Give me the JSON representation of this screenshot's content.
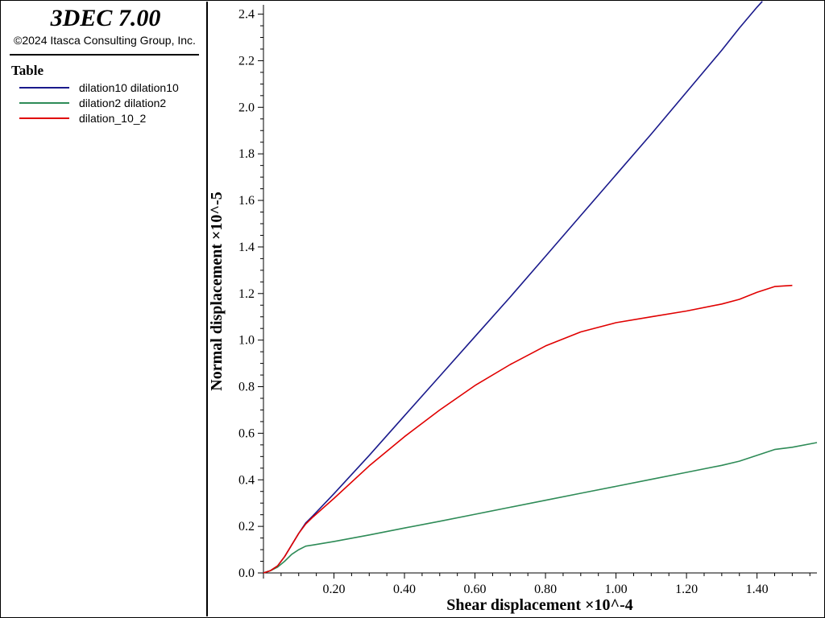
{
  "app": {
    "title": "3DEC 7.00",
    "copyright": "©2024 Itasca Consulting Group, Inc."
  },
  "legend": {
    "heading": "Table",
    "items": [
      {
        "label": "dilation10 dilation10",
        "color": "#1a1a8c"
      },
      {
        "label": "dilation2 dilation2",
        "color": "#2e8b57"
      },
      {
        "label": "dilation_10_2",
        "color": "#e00000"
      }
    ]
  },
  "chart_data": {
    "type": "line",
    "xlabel": "Shear displacement ×10^-4",
    "ylabel": "Normal displacement ×10^-5",
    "xlim": [
      0.0,
      1.57
    ],
    "ylim": [
      0.0,
      2.44
    ],
    "x_ticks": [
      "0.20",
      "0.40",
      "0.60",
      "0.80",
      "1.00",
      "1.20",
      "1.40"
    ],
    "y_ticks": [
      "0.0",
      "0.2",
      "0.4",
      "0.6",
      "0.8",
      "1.0",
      "1.2",
      "1.4",
      "1.6",
      "1.8",
      "2.0",
      "2.2",
      "2.4"
    ],
    "grid": false,
    "series": [
      {
        "name": "dilation10 dilation10",
        "color": "#1a1a8c",
        "x": [
          0.0,
          0.02,
          0.04,
          0.06,
          0.08,
          0.1,
          0.12,
          0.14,
          0.2,
          0.3,
          0.4,
          0.5,
          0.6,
          0.7,
          0.8,
          0.9,
          1.0,
          1.1,
          1.2,
          1.3,
          1.35,
          1.4,
          1.415
        ],
        "y": [
          0.0,
          0.01,
          0.03,
          0.07,
          0.12,
          0.17,
          0.215,
          0.245,
          0.34,
          0.505,
          0.675,
          0.845,
          1.015,
          1.185,
          1.36,
          1.535,
          1.71,
          1.885,
          2.065,
          2.245,
          2.34,
          2.43,
          2.455
        ]
      },
      {
        "name": "dilation2 dilation2",
        "color": "#2e8b57",
        "x": [
          0.0,
          0.02,
          0.04,
          0.06,
          0.08,
          0.1,
          0.12,
          0.14,
          0.2,
          0.3,
          0.4,
          0.5,
          0.6,
          0.7,
          0.8,
          0.9,
          1.0,
          1.1,
          1.2,
          1.3,
          1.35,
          1.4,
          1.45,
          1.5,
          1.57
        ],
        "y": [
          0.0,
          0.01,
          0.025,
          0.05,
          0.08,
          0.1,
          0.115,
          0.12,
          0.135,
          0.163,
          0.193,
          0.222,
          0.252,
          0.282,
          0.312,
          0.342,
          0.372,
          0.402,
          0.432,
          0.462,
          0.48,
          0.505,
          0.53,
          0.54,
          0.56
        ]
      },
      {
        "name": "dilation_10_2",
        "color": "#e00000",
        "x": [
          0.0,
          0.02,
          0.04,
          0.06,
          0.08,
          0.1,
          0.12,
          0.14,
          0.2,
          0.3,
          0.4,
          0.5,
          0.6,
          0.7,
          0.8,
          0.9,
          1.0,
          1.1,
          1.2,
          1.3,
          1.35,
          1.4,
          1.45,
          1.5
        ],
        "y": [
          0.0,
          0.01,
          0.03,
          0.07,
          0.12,
          0.17,
          0.21,
          0.24,
          0.32,
          0.46,
          0.585,
          0.7,
          0.805,
          0.895,
          0.975,
          1.035,
          1.075,
          1.1,
          1.125,
          1.155,
          1.175,
          1.205,
          1.23,
          1.235
        ]
      }
    ]
  }
}
